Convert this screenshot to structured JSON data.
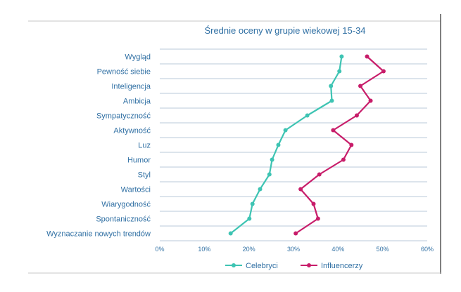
{
  "colors": {
    "title": "#2f6fa3",
    "label": "#2f6fa3",
    "series_celebryci": "#3ec4b3",
    "series_influencerzy": "#c81d6a",
    "gridline": "#b9c9d8",
    "frame": "#c7c7c7"
  },
  "chart_data": {
    "type": "line",
    "title": "Średnie oceny w grupie wiekowej 15-34",
    "orientation": "horizontal",
    "categories": [
      "Wygląd",
      "Pewność siebie",
      "Inteligencja",
      "Ambicja",
      "Sympatyczność",
      "Aktywność",
      "Luz",
      "Humor",
      "Styl",
      "Wartości",
      "Wiarygodność",
      "Spontaniczność",
      "Wyznaczanie nowych trendów"
    ],
    "series": [
      {
        "name": "Celebryci",
        "color": "#3ec4b3",
        "values": [
          40.8,
          40.3,
          38.4,
          38.6,
          33.1,
          28.2,
          26.6,
          25.2,
          24.6,
          22.5,
          20.8,
          20.1,
          15.9
        ]
      },
      {
        "name": "Influencerzy",
        "color": "#c81d6a",
        "values": [
          46.5,
          50.2,
          45.0,
          47.3,
          44.2,
          38.9,
          43.0,
          41.2,
          35.8,
          31.6,
          34.5,
          35.5,
          30.5
        ]
      }
    ],
    "xlim": [
      0,
      60
    ],
    "xticks": [
      0,
      10,
      20,
      30,
      40,
      50,
      60
    ],
    "xtick_labels": [
      "0%",
      "10%",
      "20%",
      "30%",
      "40%",
      "50%",
      "60%"
    ],
    "xlabel": "",
    "ylabel": "",
    "legend_position": "bottom",
    "grid": true
  }
}
